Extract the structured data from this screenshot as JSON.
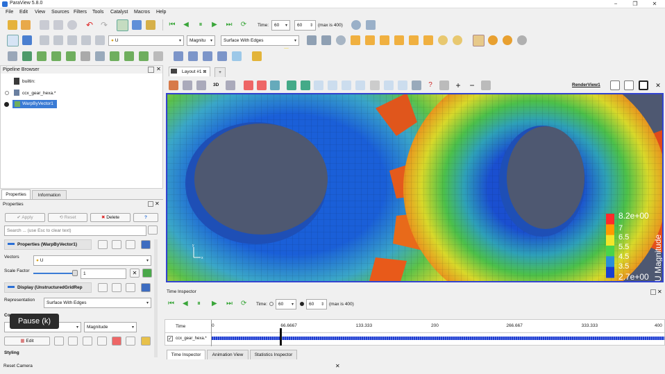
{
  "window": {
    "title": "ParaView 5.8.0",
    "minimize": "−",
    "maximize": "❐",
    "close": "✕"
  },
  "menu": [
    "File",
    "Edit",
    "View",
    "Sources",
    "Filters",
    "Tools",
    "Catalyst",
    "Macros",
    "Help"
  ],
  "toolbar": {
    "time_label": "Time:",
    "time_value": "60",
    "time_index": "60",
    "time_max": "(max is 400)",
    "color_array": "U",
    "color_component": "Magnitu",
    "representation": "Surface With Edges"
  },
  "pipeline": {
    "title": "Pipeline Browser",
    "items": [
      "builtin:",
      "ccx_gear_hexa.*",
      "WarpByVector1"
    ]
  },
  "layout": {
    "tab_label": "Layout #1",
    "add": "+",
    "view_name": "RenderView1",
    "mode_3d": "3D"
  },
  "properties": {
    "tabs": [
      "Properties",
      "Information"
    ],
    "header": "Properties",
    "apply": "Apply",
    "reset": "Reset",
    "delete": "Delete",
    "help": "?",
    "search_placeholder": "Search ... (use Esc to clear text)",
    "section_properties": "Properties (WarpByVector1)",
    "vectors_label": "Vectors",
    "vectors_value": "U",
    "scale_factor_label": "Scale Factor",
    "scale_factor_value": "1",
    "section_display": "Display (UnstructuredGridRep",
    "representation_label": "Representation",
    "representation_value": "Surface With Edges",
    "coloring_partial": "Co",
    "color_mode": "Magnitude",
    "edit": "Edit",
    "styling": "Styling",
    "status": "Reset Camera"
  },
  "legend": {
    "title": "U Magnitude",
    "max": "8.2e+00",
    "ticks": [
      "7",
      "6.5",
      "5.5",
      "4.5",
      "3.5"
    ],
    "min": "2.7e+00",
    "colors": [
      "#ff2a2a",
      "#ff9a00",
      "#f2e62a",
      "#49d44a",
      "#2a8fd8",
      "#1a3fd0"
    ]
  },
  "time_inspector": {
    "title": "Time Inspector",
    "time_label": "Time:",
    "time_value": "60",
    "time_index": "60",
    "time_max": "(max is 400)",
    "column_time": "Time",
    "ticks": [
      "0",
      "66.6667",
      "133.333",
      "200",
      "266.667",
      "333.333",
      "400"
    ],
    "track": "ccx_gear_hexa.*",
    "current_time": 60,
    "range": [
      0,
      400
    ]
  },
  "bottom_tabs": [
    "Time Inspector",
    "Animation View",
    "Statistics Inspector"
  ],
  "tooltip": "Pause (k)"
}
